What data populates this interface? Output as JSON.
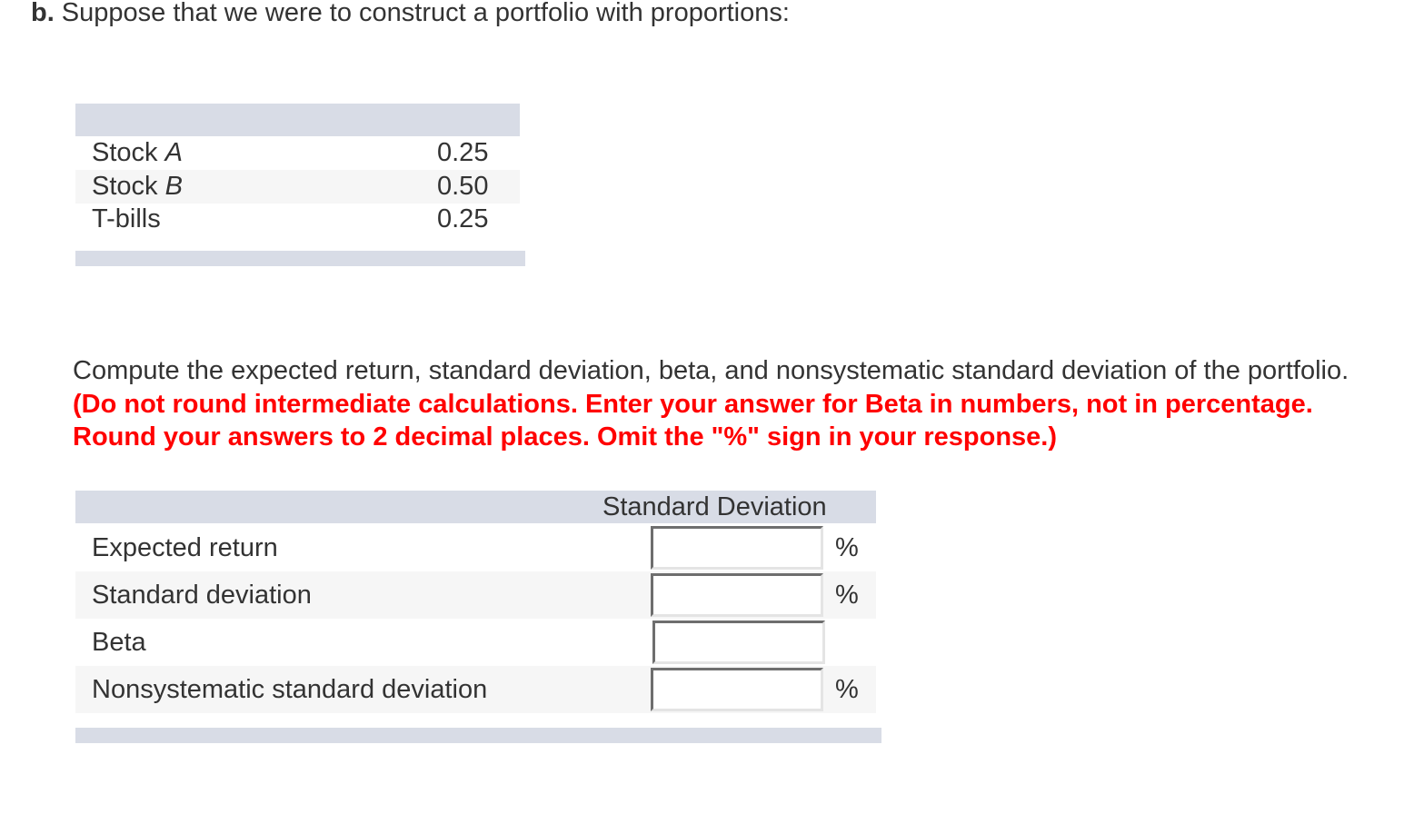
{
  "question": {
    "label": "b.",
    "text": "Suppose that we were to construct a portfolio with proportions:"
  },
  "proportions": [
    {
      "name": "Stock ",
      "name_italic": "A",
      "value": "0.25"
    },
    {
      "name": "Stock ",
      "name_italic": "B",
      "value": "0.50"
    },
    {
      "name": "T-bills",
      "name_italic": "",
      "value": "0.25"
    }
  ],
  "instructions": {
    "text": "Compute the expected return, standard deviation, beta, and nonsystematic standard deviation of the portfolio.",
    "note": "(Do not round intermediate calculations. Enter your answer for Beta in numbers, not in percentage. Round your answers to 2 decimal places. Omit the \"%\" sign in your response.)"
  },
  "answer_table": {
    "header": "Standard Deviation",
    "rows": [
      {
        "label": "Expected return",
        "value": "",
        "unit": "%"
      },
      {
        "label": "Standard deviation",
        "value": "",
        "unit": "%"
      },
      {
        "label": "Beta",
        "value": "",
        "unit": ""
      },
      {
        "label": "Nonsystematic standard deviation",
        "value": "",
        "unit": "%"
      }
    ]
  },
  "colors": {
    "header_bg": "#d8dce6",
    "alt_row": "#f6f6f6",
    "note": "#ff0000"
  }
}
